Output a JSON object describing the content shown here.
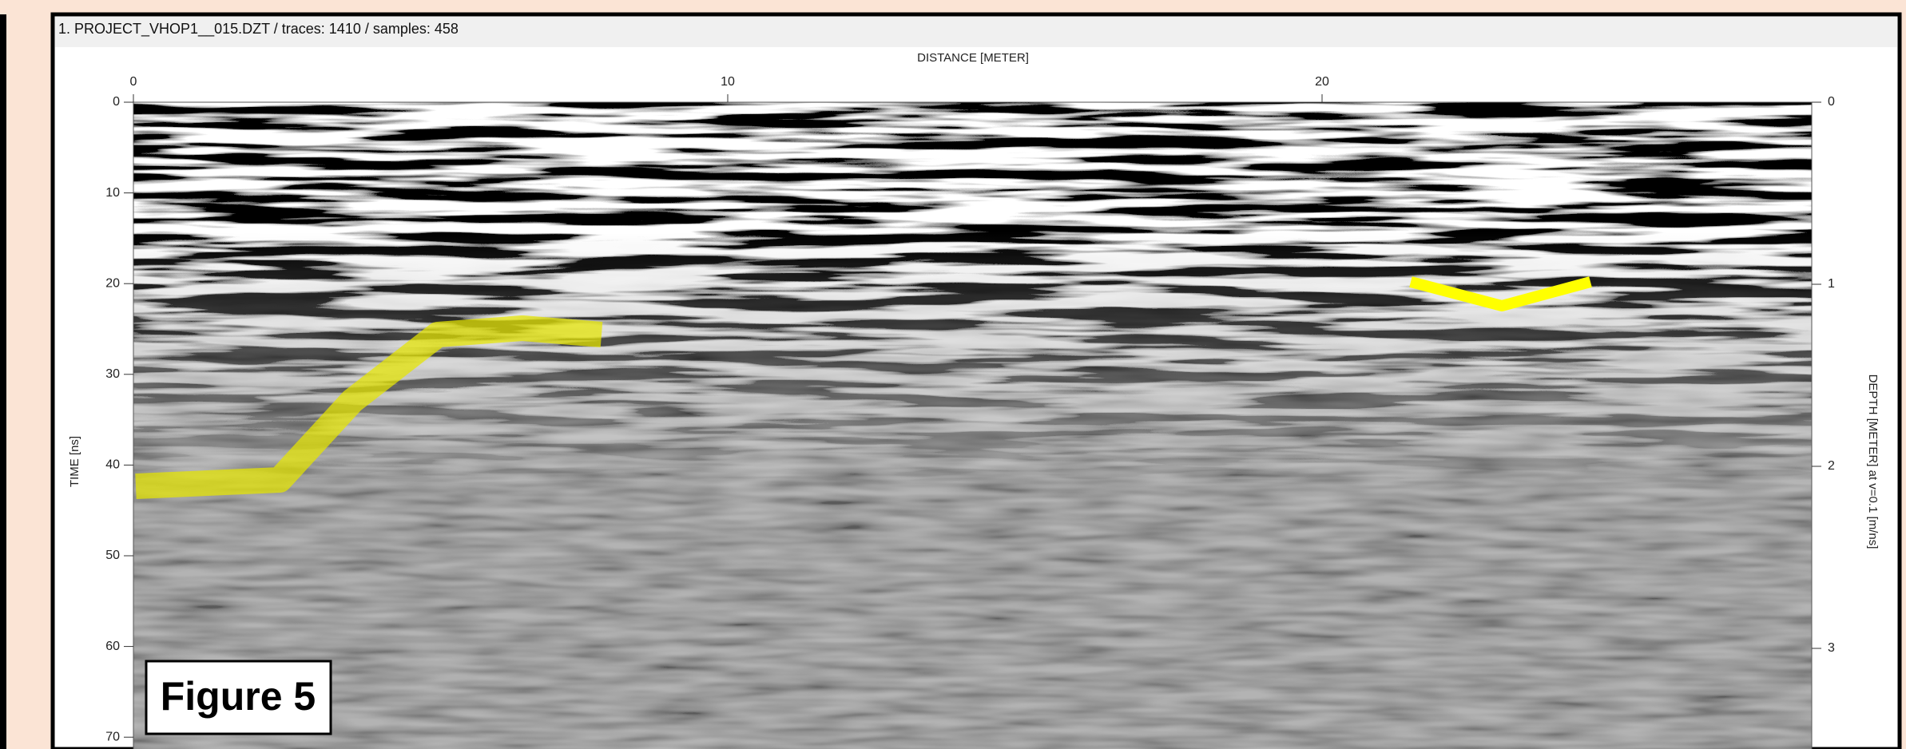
{
  "window": {
    "title": "1. PROJECT_VHOP1__015.DZT / traces: 1410 / samples: 458"
  },
  "plot": {
    "x_axis": {
      "label": "DISTANCE [METER]",
      "ticks": [
        0,
        10,
        20
      ]
    },
    "left_axis": {
      "label": "TIME [ns]",
      "ticks": [
        0,
        10,
        20,
        30,
        40,
        50,
        60,
        70
      ]
    },
    "right_axis": {
      "label": "DEPTH [METER] at v=0.1 [m/ns]",
      "ticks": [
        0,
        1,
        2,
        3
      ]
    }
  },
  "figure_label": "Figure 5"
}
